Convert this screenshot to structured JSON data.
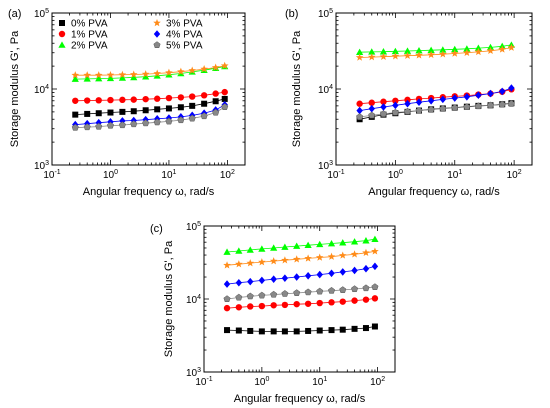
{
  "legend": [
    "0% PVA",
    "1% PVA",
    "2% PVA",
    "3% PVA",
    "4% PVA",
    "5% PVA"
  ],
  "series_style": [
    {
      "name": "0% PVA",
      "color": "#000000",
      "marker": "square"
    },
    {
      "name": "1% PVA",
      "color": "#ff0000",
      "marker": "circle"
    },
    {
      "name": "2% PVA",
      "color": "#00ff00",
      "marker": "triangle"
    },
    {
      "name": "3% PVA",
      "color": "#ff8c1a",
      "marker": "star"
    },
    {
      "name": "4% PVA",
      "color": "#0000ff",
      "marker": "diamond"
    },
    {
      "name": "5% PVA",
      "color": "#888888",
      "marker": "pentagon"
    }
  ],
  "x_ticks": [
    "10-1",
    "100",
    "101",
    "102"
  ],
  "y_ticks": [
    "103",
    "104",
    "105"
  ],
  "chart_data": [
    {
      "panel": "(a)",
      "type": "scatter",
      "xscale": "log",
      "yscale": "log",
      "xlim": [
        0.1,
        200
      ],
      "ylim": [
        1000,
        100000
      ],
      "xlabel": "Angular frequency ω, rad/s",
      "ylabel": "Storage modulus G', Pa",
      "legend_location": "top-left",
      "x": [
        0.25,
        0.4,
        0.63,
        1,
        1.6,
        2.5,
        4,
        6.3,
        10,
        16,
        25,
        40,
        63,
        90
      ],
      "series": [
        {
          "name": "0% PVA",
          "values": [
            4600,
            4700,
            4800,
            4900,
            5000,
            5100,
            5250,
            5400,
            5550,
            5750,
            6000,
            6400,
            6900,
            7400
          ]
        },
        {
          "name": "1% PVA",
          "values": [
            7000,
            7050,
            7100,
            7150,
            7200,
            7250,
            7350,
            7450,
            7600,
            7750,
            7950,
            8250,
            8700,
            9100
          ]
        },
        {
          "name": "2% PVA",
          "values": [
            13500,
            13600,
            13700,
            13800,
            14000,
            14200,
            14500,
            14900,
            15400,
            16000,
            16800,
            17700,
            18800,
            19800
          ]
        },
        {
          "name": "3% PVA",
          "values": [
            15200,
            15200,
            15200,
            15300,
            15400,
            15500,
            15700,
            16000,
            16400,
            16900,
            17500,
            18300,
            19200,
            20200
          ]
        },
        {
          "name": "4% PVA",
          "values": [
            3400,
            3500,
            3600,
            3700,
            3800,
            3850,
            3950,
            4050,
            4150,
            4300,
            4500,
            4800,
            5300,
            6200
          ]
        },
        {
          "name": "5% PVA",
          "values": [
            3100,
            3150,
            3200,
            3300,
            3350,
            3450,
            3550,
            3650,
            3750,
            3900,
            4100,
            4400,
            4900,
            5800
          ]
        }
      ]
    },
    {
      "panel": "(b)",
      "type": "scatter",
      "xscale": "log",
      "yscale": "log",
      "xlim": [
        0.1,
        200
      ],
      "ylim": [
        1000,
        100000
      ],
      "xlabel": "Angular frequency ω, rad/s",
      "ylabel": "Storage modulus G', Pa",
      "x": [
        0.25,
        0.4,
        0.63,
        1,
        1.6,
        2.5,
        4,
        6.3,
        10,
        16,
        25,
        40,
        63,
        90
      ],
      "series": [
        {
          "name": "0% PVA",
          "values": [
            4000,
            4300,
            4600,
            4800,
            5000,
            5200,
            5400,
            5550,
            5700,
            5850,
            6000,
            6100,
            6300,
            6500
          ]
        },
        {
          "name": "1% PVA",
          "values": [
            6400,
            6600,
            6800,
            7000,
            7200,
            7400,
            7600,
            7800,
            8000,
            8200,
            8450,
            8700,
            9200,
            9900
          ]
        },
        {
          "name": "2% PVA",
          "values": [
            30500,
            30800,
            31000,
            31300,
            31600,
            32000,
            32400,
            32800,
            33300,
            33800,
            34500,
            35300,
            36500,
            38000
          ]
        },
        {
          "name": "3% PVA",
          "values": [
            26000,
            26300,
            26600,
            27000,
            27400,
            27800,
            28200,
            28700,
            29300,
            30000,
            30800,
            31800,
            33200,
            35000
          ]
        },
        {
          "name": "4% PVA",
          "values": [
            5200,
            5500,
            5800,
            6100,
            6400,
            6700,
            7000,
            7300,
            7600,
            7900,
            8300,
            8700,
            9300,
            10300
          ]
        },
        {
          "name": "5% PVA",
          "values": [
            4300,
            4500,
            4700,
            4900,
            5050,
            5200,
            5350,
            5500,
            5650,
            5800,
            5950,
            6100,
            6250,
            6400
          ]
        }
      ]
    },
    {
      "panel": "(c)",
      "type": "scatter",
      "xscale": "log",
      "yscale": "log",
      "xlim": [
        0.1,
        200
      ],
      "ylim": [
        1000,
        100000
      ],
      "xlabel": "Angular frequency ω, rad/s",
      "ylabel": "Storage modulus G', Pa",
      "x": [
        0.25,
        0.4,
        0.63,
        1,
        1.6,
        2.5,
        4,
        6.3,
        10,
        16,
        25,
        40,
        63,
        90
      ],
      "series": [
        {
          "name": "0% PVA",
          "values": [
            3750,
            3700,
            3650,
            3600,
            3600,
            3600,
            3600,
            3650,
            3700,
            3750,
            3800,
            3900,
            4000,
            4200
          ]
        },
        {
          "name": "1% PVA",
          "values": [
            7500,
            7700,
            7900,
            8000,
            8200,
            8300,
            8500,
            8600,
            8800,
            9000,
            9200,
            9500,
            9800,
            10200
          ]
        },
        {
          "name": "2% PVA",
          "values": [
            44000,
            45500,
            47000,
            48500,
            50000,
            51500,
            53000,
            54500,
            56000,
            57500,
            59000,
            61000,
            63000,
            66000
          ]
        },
        {
          "name": "3% PVA",
          "values": [
            29000,
            30000,
            31000,
            32000,
            33000,
            34000,
            35000,
            36000,
            37000,
            38000,
            39500,
            41000,
            43000,
            45000
          ]
        },
        {
          "name": "4% PVA",
          "values": [
            16000,
            16700,
            17300,
            18000,
            18700,
            19300,
            20000,
            20800,
            21600,
            22500,
            23500,
            24600,
            26000,
            28000
          ]
        },
        {
          "name": "5% PVA",
          "values": [
            10000,
            10500,
            10900,
            11200,
            11500,
            11800,
            12100,
            12400,
            12700,
            13000,
            13300,
            13700,
            14100,
            14600
          ]
        }
      ]
    }
  ]
}
